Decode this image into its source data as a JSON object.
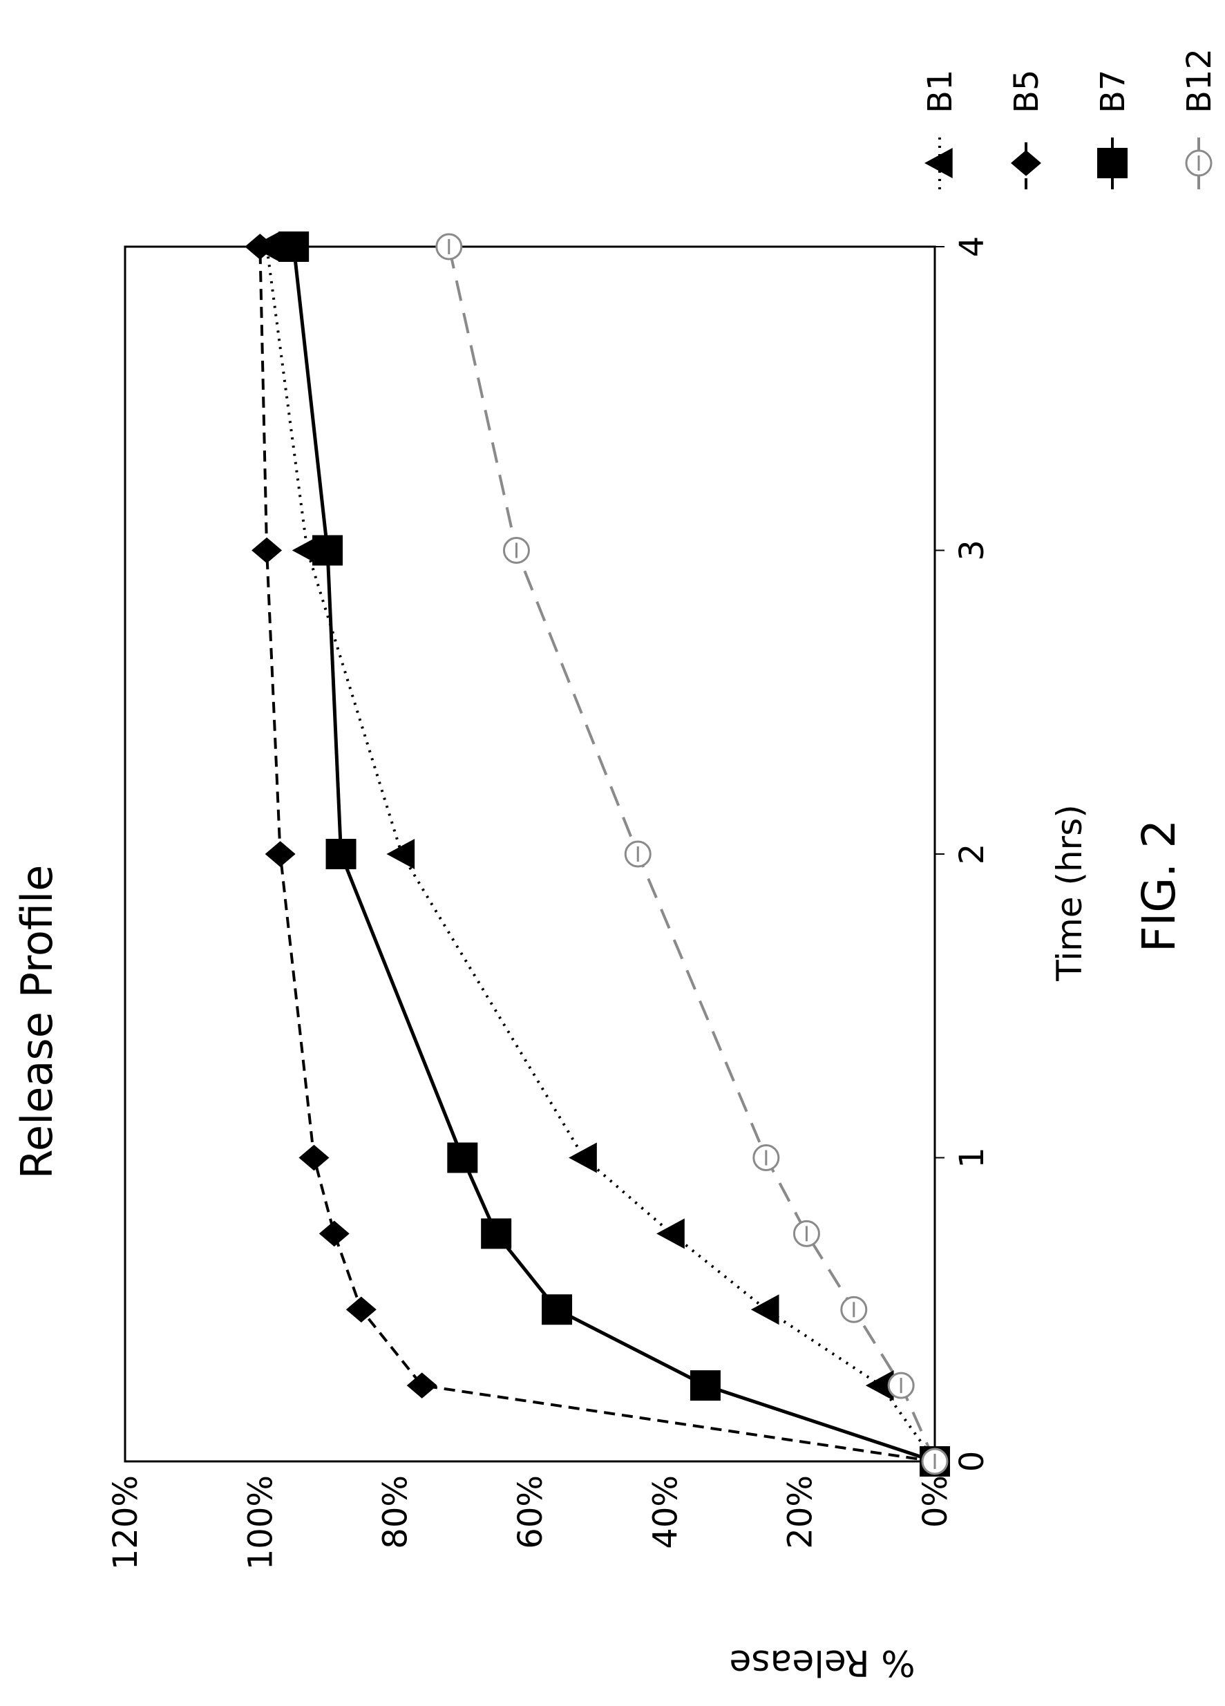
{
  "figure_label": "FIG. 2",
  "chart_data": {
    "type": "line",
    "title": "Release Profile",
    "xlabel": "Time (hrs)",
    "ylabel": "% Release",
    "xlim": [
      0,
      4
    ],
    "ylim": [
      0,
      1.2
    ],
    "x_ticks": [
      "0",
      "1",
      "2",
      "3",
      "4"
    ],
    "y_ticks": [
      "0%",
      "20%",
      "40%",
      "60%",
      "80%",
      "100%",
      "120%"
    ],
    "grid": false,
    "legend_position": "top-right (rotated)",
    "series": [
      {
        "name": "B1",
        "style": "dotted",
        "marker": "triangle",
        "color": "#000000",
        "x": [
          0,
          0.25,
          0.5,
          0.75,
          1,
          2,
          3,
          4
        ],
        "y": [
          0,
          0.08,
          0.25,
          0.39,
          0.52,
          0.79,
          0.93,
          0.99
        ]
      },
      {
        "name": "B5",
        "style": "dashed",
        "marker": "diamond",
        "color": "#000000",
        "x": [
          0,
          0.25,
          0.5,
          0.75,
          1,
          2,
          3,
          4
        ],
        "y": [
          0,
          0.76,
          0.85,
          0.89,
          0.92,
          0.97,
          0.99,
          1.0
        ]
      },
      {
        "name": "B7",
        "style": "solid",
        "marker": "square",
        "color": "#000000",
        "x": [
          0,
          0.25,
          0.5,
          0.75,
          1,
          2,
          3,
          4
        ],
        "y": [
          0,
          0.34,
          0.56,
          0.65,
          0.7,
          0.88,
          0.9,
          0.95
        ]
      },
      {
        "name": "B12",
        "style": "long-dashed",
        "marker": "open-circle",
        "color": "#8a8a8a",
        "x": [
          0,
          0.25,
          0.5,
          0.75,
          1,
          2,
          3,
          4
        ],
        "y": [
          0,
          0.05,
          0.12,
          0.19,
          0.25,
          0.44,
          0.62,
          0.72
        ]
      }
    ]
  }
}
